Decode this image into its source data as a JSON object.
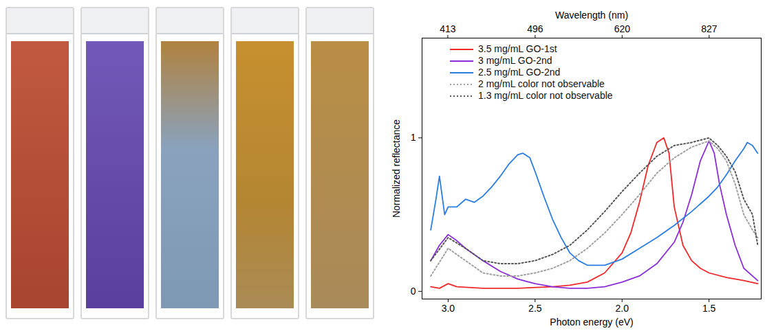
{
  "chart_data": {
    "type": "line",
    "xlabel": "Photon energy (eV)",
    "x2label": "Wavelength (nm)",
    "ylabel": "Normalized reflectance",
    "xlim": [
      3.15,
      1.2
    ],
    "xticks": [
      {
        "value": 3,
        "label": "3.0"
      },
      2.5,
      {
        "value": 2,
        "label": "2.0"
      },
      1.5
    ],
    "x2ticks": [
      413,
      496,
      620,
      827
    ],
    "ylim": [
      -0.05,
      1.65
    ],
    "yticks": [
      0,
      1
    ],
    "grid": false,
    "legend": "upper left",
    "series": [
      {
        "name": "3.5 mg/mL GO-1st",
        "color": "#f0282a",
        "line_style": "solid",
        "x": [
          3.1,
          3.05,
          3.0,
          2.95,
          2.8,
          2.6,
          2.4,
          2.3,
          2.2,
          2.1,
          2.0,
          1.95,
          1.9,
          1.85,
          1.8,
          1.76,
          1.73,
          1.7,
          1.65,
          1.6,
          1.55,
          1.5,
          1.4,
          1.3,
          1.22
        ],
        "values": [
          0.03,
          0.02,
          0.05,
          0.03,
          0.02,
          0.02,
          0.03,
          0.04,
          0.06,
          0.12,
          0.25,
          0.38,
          0.58,
          0.82,
          0.97,
          1.0,
          0.9,
          0.55,
          0.3,
          0.2,
          0.15,
          0.12,
          0.09,
          0.07,
          0.05
        ]
      },
      {
        "name": "3 mg/mL GO-2nd",
        "color": "#8a2fd8",
        "line_style": "solid",
        "x": [
          3.1,
          3.05,
          3.0,
          2.95,
          2.9,
          2.8,
          2.7,
          2.6,
          2.5,
          2.4,
          2.3,
          2.2,
          2.1,
          2.0,
          1.9,
          1.8,
          1.7,
          1.65,
          1.6,
          1.55,
          1.5,
          1.47,
          1.44,
          1.4,
          1.35,
          1.3,
          1.22
        ],
        "values": [
          0.2,
          0.3,
          0.37,
          0.33,
          0.28,
          0.2,
          0.13,
          0.08,
          0.05,
          0.03,
          0.02,
          0.02,
          0.03,
          0.06,
          0.1,
          0.18,
          0.32,
          0.45,
          0.63,
          0.85,
          0.98,
          0.9,
          0.7,
          0.5,
          0.3,
          0.15,
          0.07
        ]
      },
      {
        "name": "2.5 mg/mL GO-2nd",
        "color": "#2a7de1",
        "line_style": "solid",
        "x": [
          3.1,
          3.07,
          3.05,
          3.02,
          3.0,
          2.95,
          2.9,
          2.85,
          2.8,
          2.75,
          2.7,
          2.65,
          2.6,
          2.57,
          2.53,
          2.5,
          2.45,
          2.4,
          2.35,
          2.3,
          2.25,
          2.2,
          2.1,
          2.0,
          1.9,
          1.8,
          1.7,
          1.6,
          1.5,
          1.45,
          1.4,
          1.35,
          1.3,
          1.28,
          1.25,
          1.22
        ],
        "values": [
          0.4,
          0.6,
          0.75,
          0.5,
          0.55,
          0.55,
          0.6,
          0.58,
          0.62,
          0.68,
          0.75,
          0.83,
          0.89,
          0.9,
          0.87,
          0.78,
          0.62,
          0.47,
          0.35,
          0.25,
          0.2,
          0.17,
          0.17,
          0.21,
          0.28,
          0.35,
          0.43,
          0.52,
          0.62,
          0.68,
          0.76,
          0.85,
          0.93,
          0.97,
          0.95,
          0.9
        ]
      },
      {
        "name": "2 mg/mL color not observable",
        "color": "#a0a0a0",
        "line_style": "dotted",
        "x": [
          3.1,
          3.0,
          2.9,
          2.8,
          2.7,
          2.6,
          2.5,
          2.4,
          2.3,
          2.2,
          2.1,
          2.0,
          1.9,
          1.8,
          1.7,
          1.6,
          1.5,
          1.45,
          1.4,
          1.35,
          1.3,
          1.25,
          1.22
        ],
        "values": [
          0.1,
          0.28,
          0.2,
          0.12,
          0.1,
          0.1,
          0.12,
          0.15,
          0.2,
          0.28,
          0.38,
          0.5,
          0.63,
          0.77,
          0.87,
          0.94,
          0.98,
          0.93,
          0.85,
          0.7,
          0.5,
          0.4,
          0.35
        ]
      },
      {
        "name": "1.3 mg/mL color not observable",
        "color": "#555555",
        "line_style": "dotted",
        "x": [
          3.1,
          3.0,
          2.9,
          2.8,
          2.7,
          2.6,
          2.5,
          2.4,
          2.3,
          2.2,
          2.1,
          2.0,
          1.9,
          1.8,
          1.7,
          1.6,
          1.5,
          1.45,
          1.4,
          1.35,
          1.3,
          1.25,
          1.22
        ],
        "values": [
          0.2,
          0.35,
          0.28,
          0.2,
          0.18,
          0.18,
          0.2,
          0.24,
          0.3,
          0.4,
          0.52,
          0.65,
          0.77,
          0.88,
          0.95,
          0.97,
          1.0,
          0.95,
          0.88,
          0.78,
          0.6,
          0.5,
          0.3
        ]
      }
    ]
  }
}
